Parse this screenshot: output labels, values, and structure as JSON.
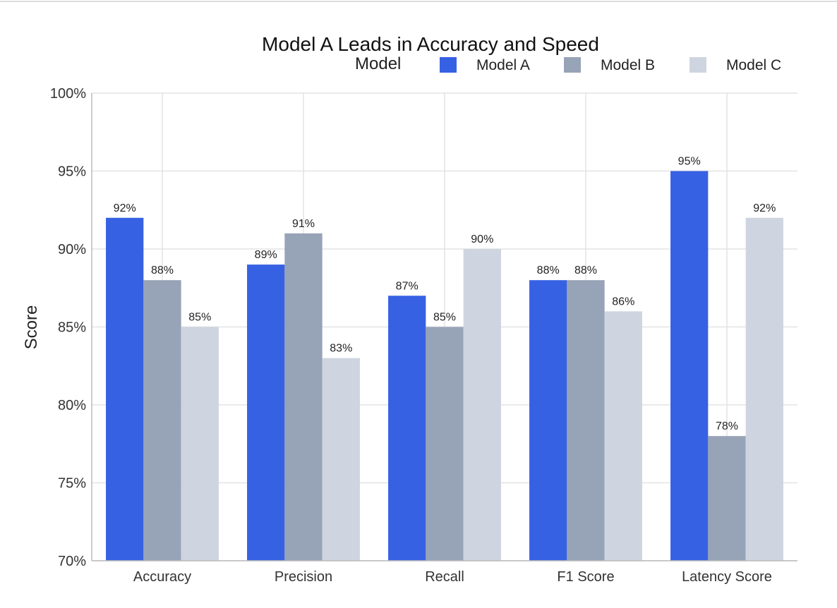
{
  "chart_data": {
    "type": "bar",
    "title": "Model A Leads in Accuracy and Speed",
    "xlabel": "",
    "ylabel": "Score",
    "ylim": [
      70,
      100
    ],
    "yticks": [
      70,
      75,
      80,
      85,
      90,
      95,
      100
    ],
    "ytick_labels": [
      "70%",
      "75%",
      "80%",
      "85%",
      "90%",
      "95%",
      "100%"
    ],
    "grid": true,
    "legend": {
      "title": "Model",
      "placement": "top-right"
    },
    "categories": [
      "Accuracy",
      "Precision",
      "Recall",
      "F1 Score",
      "Latency Score"
    ],
    "series": [
      {
        "name": "Model A",
        "color": "#3761E3",
        "values": [
          92,
          89,
          87,
          88,
          95
        ],
        "labels": [
          "92%",
          "89%",
          "87%",
          "88%",
          "95%"
        ]
      },
      {
        "name": "Model B",
        "color": "#97A3B6",
        "values": [
          88,
          91,
          85,
          88,
          78
        ],
        "labels": [
          "88%",
          "91%",
          "85%",
          "88%",
          "78%"
        ]
      },
      {
        "name": "Model C",
        "color": "#CED5E0",
        "values": [
          85,
          83,
          90,
          86,
          92
        ],
        "labels": [
          "85%",
          "83%",
          "90%",
          "86%",
          "92%"
        ]
      }
    ]
  }
}
